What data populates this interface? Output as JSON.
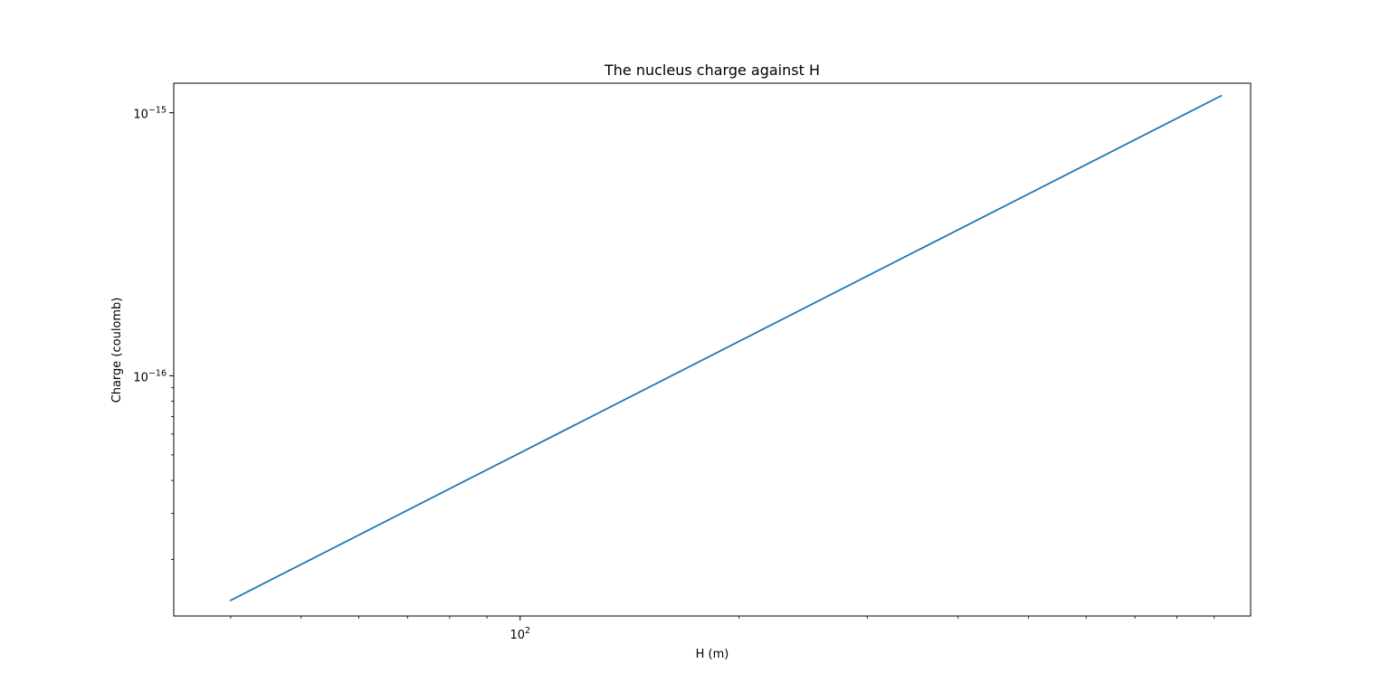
{
  "chart_data": {
    "type": "line",
    "title": "The nucleus charge against H",
    "xlabel": "H (m)",
    "ylabel": "Charge (coulomb)",
    "x_scale": "log",
    "y_scale": "log",
    "xlim": [
      33.4,
      1010
    ],
    "ylim": [
      1.22e-17,
      1.295e-15
    ],
    "grid": false,
    "x_major_ticks": [
      {
        "value": 100,
        "base": "10",
        "exp": "2"
      }
    ],
    "x_minor_ticks": [
      40,
      50,
      60,
      70,
      80,
      90,
      200,
      300,
      400,
      500,
      600,
      700,
      800,
      900
    ],
    "y_major_ticks": [
      {
        "value": 1e-15,
        "base": "10",
        "exp": "−15"
      },
      {
        "value": 1e-16,
        "base": "10",
        "exp": "−16"
      }
    ],
    "y_minor_ticks": [
      2e-17,
      3e-17,
      4e-17,
      5e-17,
      6e-17,
      7e-17,
      8e-17,
      9e-17
    ],
    "series": [
      {
        "name": "Charge",
        "color": "#1f77b4",
        "x": [
          40,
          920
        ],
        "y": [
          1.4e-17,
          1.16e-15
        ]
      }
    ]
  }
}
